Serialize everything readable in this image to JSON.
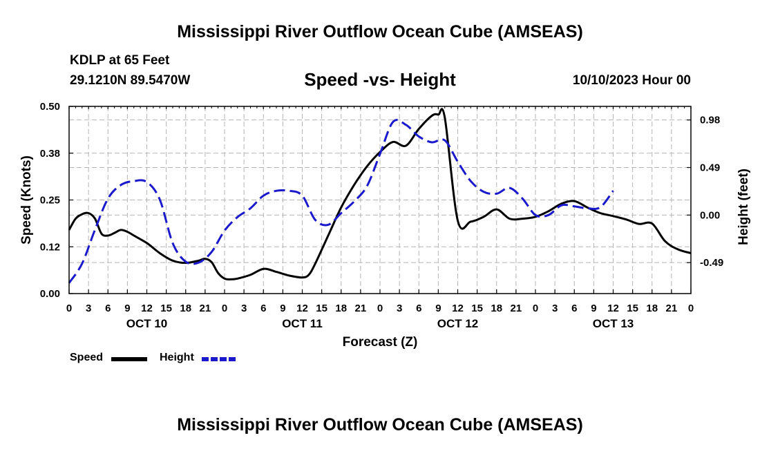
{
  "header": {
    "title": "Mississippi River Outflow Ocean Cube (AMSEAS)",
    "station": "KDLP at 65 Feet",
    "coords": "29.1210N  89.5470W",
    "subtitle": "Speed -vs- Height",
    "date": "10/10/2023 Hour 00",
    "footer_title": "Mississippi River Outflow Ocean Cube (AMSEAS)"
  },
  "legend": {
    "speed_label": "Speed",
    "height_label": "Height"
  },
  "colors": {
    "speed": "#000000",
    "height": "#1a1acc",
    "grid": "#b4b4b4"
  },
  "chart_data": {
    "type": "line",
    "xlabel": "Forecast (Z)",
    "ylabel_left": "Speed (Knots)",
    "ylabel_right": "Height (feet)",
    "xlim": [
      0,
      96
    ],
    "ylim_left": [
      0,
      0.5
    ],
    "ylim_right": [
      -0.809,
      1.12
    ],
    "x_tick_step": 3,
    "x_tick_labels": [
      "0",
      "3",
      "6",
      "9",
      "12",
      "15",
      "18",
      "21",
      "0",
      "3",
      "6",
      "9",
      "12",
      "15",
      "18",
      "21",
      "0",
      "3",
      "6",
      "9",
      "12",
      "15",
      "18",
      "21",
      "0",
      "3",
      "6",
      "9",
      "12",
      "15",
      "18",
      "21",
      "0"
    ],
    "day_labels": [
      {
        "label": "OCT 10",
        "x": 12
      },
      {
        "label": "OCT 11",
        "x": 36
      },
      {
        "label": "OCT 12",
        "x": 60
      },
      {
        "label": "OCT 13",
        "x": 84
      }
    ],
    "y_left_ticks": [
      {
        "value": 0.0,
        "label": "0.00"
      },
      {
        "value": 0.125,
        "label": "0.12"
      },
      {
        "value": 0.25,
        "label": "0.25"
      },
      {
        "value": 0.375,
        "label": "0.38"
      },
      {
        "value": 0.5,
        "label": "0.50"
      }
    ],
    "y_right_ticks": [
      {
        "value": -0.49,
        "label": "-0.49"
      },
      {
        "value": 0.0,
        "label": "0.00"
      },
      {
        "value": 0.49,
        "label": "0.49"
      },
      {
        "value": 0.98,
        "label": "0.98"
      }
    ],
    "series": [
      {
        "name": "Speed",
        "axis": "left",
        "style": "solid",
        "x": [
          0,
          1,
          2,
          3,
          4,
          5,
          6,
          7,
          8,
          9,
          10,
          12,
          14,
          16,
          18,
          20,
          21,
          22,
          23,
          24,
          25,
          26,
          28,
          30,
          32,
          34,
          36,
          37,
          38,
          40,
          42,
          44,
          46,
          48,
          50,
          52,
          54,
          56,
          57,
          58,
          60,
          62,
          64,
          66,
          68,
          70,
          72,
          74,
          76,
          78,
          80,
          82,
          84,
          86,
          88,
          90,
          92,
          94,
          96
        ],
        "y": [
          0.17,
          0.2,
          0.212,
          0.215,
          0.2,
          0.16,
          0.155,
          0.162,
          0.17,
          0.165,
          0.155,
          0.135,
          0.108,
          0.088,
          0.082,
          0.088,
          0.093,
          0.084,
          0.055,
          0.04,
          0.038,
          0.04,
          0.05,
          0.066,
          0.058,
          0.048,
          0.043,
          0.05,
          0.08,
          0.155,
          0.23,
          0.29,
          0.34,
          0.378,
          0.405,
          0.395,
          0.44,
          0.475,
          0.478,
          0.47,
          0.195,
          0.192,
          0.205,
          0.225,
          0.2,
          0.2,
          0.205,
          0.22,
          0.24,
          0.247,
          0.23,
          0.215,
          0.207,
          0.198,
          0.186,
          0.187,
          0.14,
          0.118,
          0.108
        ]
      },
      {
        "name": "Height",
        "axis": "right",
        "style": "dashed",
        "x": [
          0,
          2,
          4,
          6,
          8,
          10,
          12,
          14,
          16,
          18,
          20,
          22,
          24,
          26,
          28,
          30,
          32,
          34,
          36,
          38,
          40,
          42,
          44,
          46,
          48,
          50,
          52,
          54,
          56,
          58,
          60,
          62,
          64,
          66,
          68,
          70,
          72,
          74,
          76,
          78,
          80,
          82,
          84,
          86,
          88,
          90,
          92,
          94,
          96
        ],
        "y": [
          -0.7,
          -0.5,
          -0.15,
          0.17,
          0.31,
          0.35,
          0.34,
          0.16,
          -0.29,
          -0.48,
          -0.49,
          -0.38,
          -0.16,
          -0.02,
          0.07,
          0.2,
          0.25,
          0.25,
          0.2,
          -0.05,
          -0.1,
          0.02,
          0.14,
          0.3,
          0.63,
          0.96,
          0.93,
          0.81,
          0.75,
          0.77,
          0.55,
          0.35,
          0.24,
          0.22,
          0.28,
          0.17,
          0.0,
          0.0,
          0.1,
          0.09,
          0.07,
          0.08,
          0.25,
          null,
          null,
          null,
          null,
          null,
          null
        ]
      }
    ]
  }
}
